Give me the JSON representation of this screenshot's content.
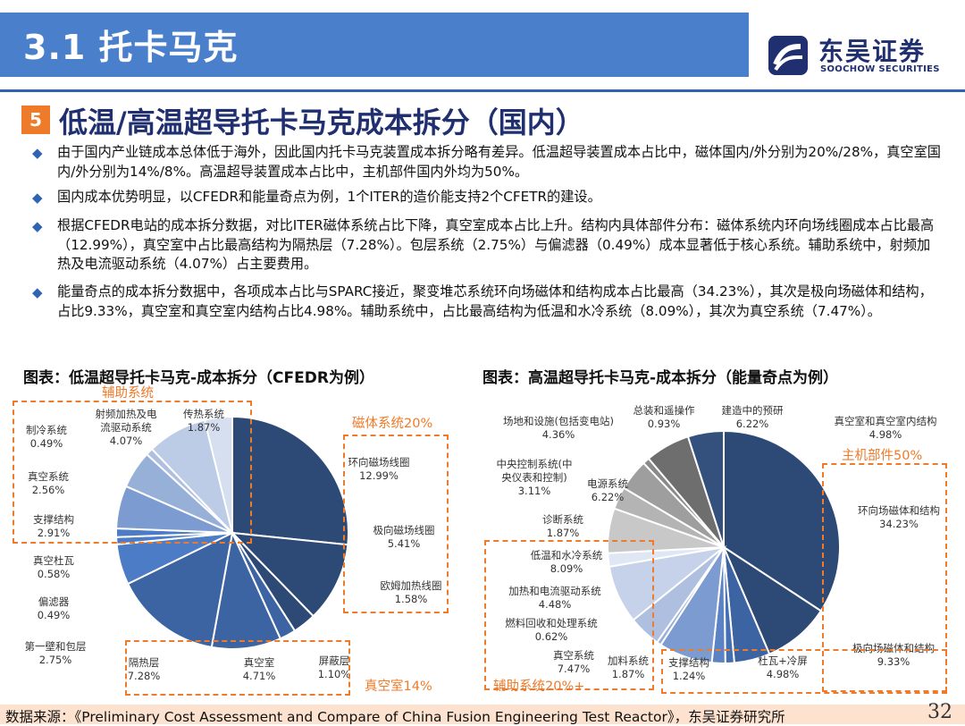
{
  "header": {
    "title": "3.1 托卡马克",
    "logo_cn": "东吴证券",
    "logo_en": "SOOCHOW SECURITIES"
  },
  "section": {
    "number": "5",
    "title": "低温/高温超导托卡马克成本拆分（国内）"
  },
  "bullets": [
    "由于国内产业链成本总体低于海外，因此国内托卡马克装置成本拆分略有差异。低温超导装置成本占比中，磁体国内/外分别为20%/28%，真空室国内/外分别为14%/8%。高温超导装置成本占比中，主机部件国内外均为50%。",
    "国内成本优势明显，以CFEDR和能量奇点为例，1个ITER的造价能支持2个CFETR的建设。",
    "根据CFEDR电站的成本拆分数据，对比ITER磁体系统占比下降，真空室成本占比上升。结构内具体部件分布：磁体系统内环向场线圈成本占比最高（12.99%），真空室中占比最高结构为隔热层（7.28%）。包层系统（2.75%）与偏滤器（0.49%）成本显著低于核心系统。辅助系统中，射频加热及电流驱动系统（4.07%）占主要费用。",
    "能量奇点的成本拆分数据中，各项成本占比与SPARC接近，聚变堆芯系统环向场磁体和结构成本占比最高（34.23%），其次是极向场磁体和结构，占比9.33%，真空室和真空室内结构占比4.98%。辅助系统中，占比最高结构为低温和水冷系统（8.09%），其次为真空系统（7.47%）。"
  ],
  "chart_data": [
    {
      "type": "pie",
      "title": "图表：低温超导托卡马克-成本拆分（CFEDR为例）",
      "slices": [
        {
          "name": "环向磁场线圈",
          "value": 12.99,
          "color": "#2d4a76"
        },
        {
          "name": "极向磁场线圈",
          "value": 5.41,
          "color": "#2d4a76"
        },
        {
          "name": "欧姆加热线圈",
          "value": 1.58,
          "color": "#2d4a76"
        },
        {
          "name": "屏蔽层",
          "value": 1.1,
          "color": "#3c64a3"
        },
        {
          "name": "真空室",
          "value": 4.71,
          "color": "#3c64a3"
        },
        {
          "name": "隔热层",
          "value": 7.28,
          "color": "#3c64a3"
        },
        {
          "name": "第一壁和包层",
          "value": 2.75,
          "color": "#4d7cc6"
        },
        {
          "name": "偏滤器",
          "value": 0.49,
          "color": "#4d7cc6"
        },
        {
          "name": "真空杜瓦",
          "value": 0.58,
          "color": "#4d7cc6"
        },
        {
          "name": "支撑结构",
          "value": 2.91,
          "color": "#7c9bd0"
        },
        {
          "name": "真空系统",
          "value": 2.56,
          "color": "#97b0d8"
        },
        {
          "name": "制冷系统",
          "value": 0.49,
          "color": "#aebfe0"
        },
        {
          "name": "射频加热及电流驱动系统",
          "value": 4.07,
          "color": "#bccbe6"
        },
        {
          "name": "传热系统",
          "value": 1.87,
          "color": "#d5dff0"
        }
      ],
      "labels": [
        {
          "text": "环向磁场线圈",
          "pct": "12.99%"
        },
        {
          "text": "极向磁场线圈",
          "pct": "5.41%"
        },
        {
          "text": "欧姆加热线圈",
          "pct": "1.58%"
        },
        {
          "text": "屏蔽层",
          "pct": "1.10%"
        },
        {
          "text": "真空室",
          "pct": "4.71%"
        },
        {
          "text": "隔热层",
          "pct": "7.28%"
        },
        {
          "text": "第一壁和包层",
          "pct": "2.75%"
        },
        {
          "text": "偏滤器",
          "pct": "0.49%"
        },
        {
          "text": "真空杜瓦",
          "pct": "0.58%"
        },
        {
          "text": "支撑结构",
          "pct": "2.91%"
        },
        {
          "text": "真空系统",
          "pct": "2.56%"
        },
        {
          "text": "制冷系统",
          "pct": "0.49%"
        },
        {
          "text": "射频加热及电",
          "text2": "流驱动系统",
          "pct": "4.07%"
        },
        {
          "text": "传热系统",
          "pct": "1.87%"
        }
      ],
      "groups": [
        "辅助系统",
        "磁体系统20%",
        "真空室14%"
      ]
    },
    {
      "type": "pie",
      "title": "图表：高温超导托卡马克-成本拆分（能量奇点为例）",
      "slices": [
        {
          "name": "环向场磁体和结构",
          "value": 34.23,
          "color": "#2d4a76"
        },
        {
          "name": "极向场磁体和结构",
          "value": 9.33,
          "color": "#2d4a76"
        },
        {
          "name": "杜瓦+冷屏",
          "value": 4.98,
          "color": "#3c64a3"
        },
        {
          "name": "支撑结构",
          "value": 1.24,
          "color": "#4470b3"
        },
        {
          "name": "加料系统",
          "value": 1.87,
          "color": "#5a82c4"
        },
        {
          "name": "真空系统",
          "value": 7.47,
          "color": "#7c9bd0"
        },
        {
          "name": "燃料回收和处理系统",
          "value": 0.62,
          "color": "#97b0d8"
        },
        {
          "name": "加热和电流驱动系统",
          "value": 4.48,
          "color": "#aebfe0"
        },
        {
          "name": "低温和水冷系统",
          "value": 8.09,
          "color": "#c5d2ea"
        },
        {
          "name": "诊断系统",
          "value": 1.87,
          "color": "#e0e7f4"
        },
        {
          "name": "电源系统",
          "value": 6.22,
          "color": "#c8c8c8"
        },
        {
          "name": "中央控制系统(中央仪表和控制)",
          "value": 3.11,
          "color": "#b4b4b4"
        },
        {
          "name": "场地和设施(包括变电站)",
          "value": 4.36,
          "color": "#9e9e9e"
        },
        {
          "name": "总装和遥操作",
          "value": 0.93,
          "color": "#8a8a8a"
        },
        {
          "name": "建造中的预研",
          "value": 6.22,
          "color": "#6e6e6e"
        },
        {
          "name": "真空室和真空室内结构",
          "value": 4.98,
          "color": "#34507c"
        }
      ],
      "labels": [
        {
          "text": "环向场磁体和结构",
          "pct": "34.23%"
        },
        {
          "text": "极向场磁体和结构",
          "pct": "9.33%"
        },
        {
          "text": "杜瓦+冷屏",
          "pct": "4.98%"
        },
        {
          "text": "支撑结构",
          "pct": "1.24%"
        },
        {
          "text": "加料系统",
          "pct": "1.87%"
        },
        {
          "text": "真空系统",
          "pct": "7.47%"
        },
        {
          "text": "燃料回收和处理系统",
          "pct": "0.62%"
        },
        {
          "text": "加热和电流驱动系统",
          "pct": "4.48%"
        },
        {
          "text": "低温和水冷系统",
          "pct": "8.09%"
        },
        {
          "text": "诊断系统",
          "pct": "1.87%"
        },
        {
          "text": "电源系统",
          "pct": "6.22%"
        },
        {
          "text": "中央控制系统(中",
          "text2": "央仪表和控制)",
          "pct": "3.11%"
        },
        {
          "text": "场地和设施(包括变电站)",
          "pct": "4.36%"
        },
        {
          "text": "总装和遥操作",
          "pct": "0.93%"
        },
        {
          "text": "建造中的预研",
          "pct": "6.22%"
        },
        {
          "text": "真空室和真空室内结构",
          "pct": "4.98%"
        }
      ],
      "groups": [
        "主机部件50%",
        "辅助系统20%+"
      ]
    }
  ],
  "source": "数据来源：《Preliminary Cost Assessment and Compare of China Fusion Engineering Test Reactor》，东吴证券研究所",
  "page": "32"
}
